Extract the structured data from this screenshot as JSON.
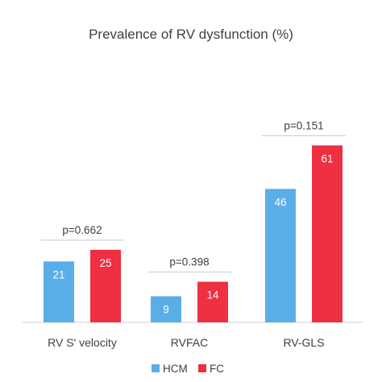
{
  "chart_data": {
    "type": "bar",
    "title": "Prevalence of RV dysfunction (%)",
    "categories": [
      "RV S' velocity",
      "RVFAC",
      "RV-GLS"
    ],
    "series": [
      {
        "name": "HCM",
        "values": [
          21,
          9,
          46
        ],
        "color": "#5aaee8"
      },
      {
        "name": "FC",
        "values": [
          25,
          14,
          61
        ],
        "color": "#ef2f42"
      }
    ],
    "annotations": [
      "p=0.662",
      "p=0.398",
      "p=0.151"
    ],
    "ylim": [
      0,
      68
    ],
    "grid": false,
    "legend": "bottom-center",
    "xlabel": "",
    "ylabel": ""
  }
}
